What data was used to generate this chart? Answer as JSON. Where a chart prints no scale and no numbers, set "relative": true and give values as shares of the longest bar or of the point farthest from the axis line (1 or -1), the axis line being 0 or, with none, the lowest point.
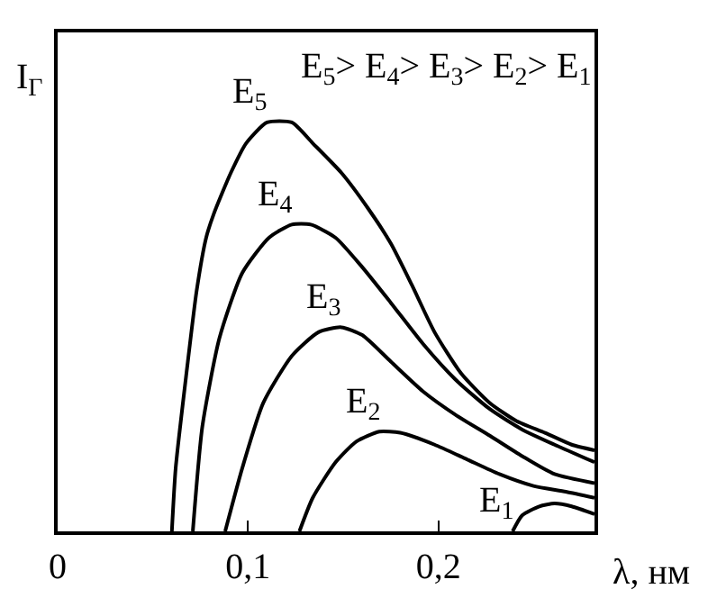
{
  "chart_data": {
    "type": "line",
    "relative": true,
    "xlabel": "λ, нм",
    "ylabel": "I$_{Г}$",
    "annotations": [
      "E$_{5}$> E$_{4}$> E$_{3}$> E$_{2}$> E$_{1}$"
    ],
    "xlim": [
      0,
      0.282
    ],
    "xticks": [
      {
        "value": 0,
        "label": "0"
      },
      {
        "value": 0.1,
        "label": "0,1"
      },
      {
        "value": 0.2,
        "label": "0,2"
      }
    ],
    "grid": false,
    "legend": false,
    "marker": "none",
    "line_style": "solid",
    "series": [
      {
        "name": "E$_{5}$",
        "color": "#000000",
        "x": [
          0.06,
          0.062,
          0.068,
          0.073,
          0.078,
          0.082,
          0.091,
          0.099,
          0.11,
          0.123,
          0.134,
          0.149,
          0.163,
          0.175,
          0.186,
          0.198,
          0.212,
          0.227,
          0.241,
          0.256,
          0.27,
          0.282
        ],
        "values": [
          0,
          0.155,
          0.4,
          0.588,
          0.718,
          0.776,
          0.877,
          0.949,
          1,
          1,
          0.949,
          0.877,
          0.79,
          0.704,
          0.603,
          0.487,
          0.386,
          0.314,
          0.27,
          0.241,
          0.212,
          0.198
        ]
      },
      {
        "name": "E$_{4}$",
        "color": "#000000",
        "x": [
          0.071,
          0.076,
          0.085,
          0.097,
          0.111,
          0.123,
          0.133,
          0.146,
          0.16,
          0.175,
          0.192,
          0.209,
          0.227,
          0.244,
          0.261,
          0.282
        ],
        "values": [
          0,
          0.256,
          0.473,
          0.632,
          0.718,
          0.75,
          0.75,
          0.718,
          0.646,
          0.559,
          0.458,
          0.371,
          0.299,
          0.249,
          0.212,
          0.169
        ]
      },
      {
        "name": "E$_{3}$",
        "color": "#000000",
        "x": [
          0.088,
          0.097,
          0.108,
          0.123,
          0.137,
          0.149,
          0.16,
          0.175,
          0.192,
          0.209,
          0.227,
          0.244,
          0.261,
          0.282
        ],
        "values": [
          0,
          0.155,
          0.314,
          0.429,
          0.487,
          0.499,
          0.48,
          0.415,
          0.342,
          0.285,
          0.234,
          0.184,
          0.14,
          0.118
        ]
      },
      {
        "name": "E$_{2}$",
        "color": "#000000",
        "x": [
          0.127,
          0.134,
          0.146,
          0.157,
          0.169,
          0.18,
          0.198,
          0.215,
          0.232,
          0.25,
          0.267,
          0.282
        ],
        "values": [
          0,
          0.082,
          0.169,
          0.22,
          0.244,
          0.241,
          0.212,
          0.176,
          0.14,
          0.111,
          0.097,
          0.082
        ]
      },
      {
        "name": "E$_{1}$",
        "color": "#000000",
        "x": [
          0.239,
          0.244,
          0.253,
          0.261,
          0.27,
          0.282
        ],
        "values": [
          0,
          0.039,
          0.061,
          0.068,
          0.061,
          0.042
        ]
      }
    ]
  }
}
